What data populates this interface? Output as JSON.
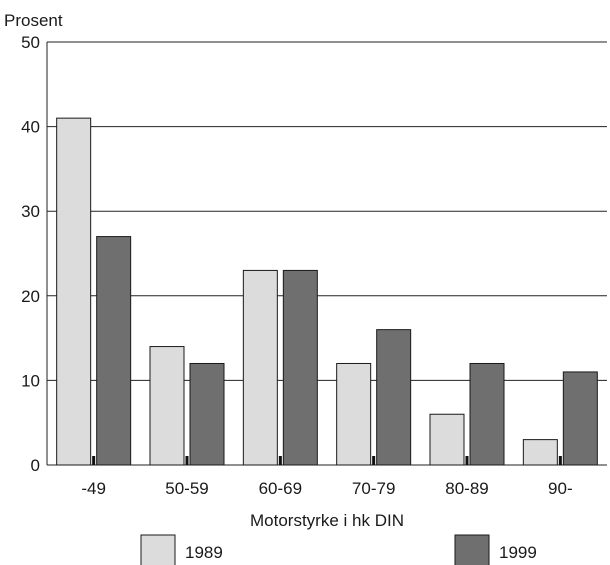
{
  "chart_data": {
    "type": "bar",
    "ylabel": "Prosent",
    "xlabel": "Motorstyrke i hk DIN",
    "categories": [
      "-49",
      "50-59",
      "60-69",
      "70-79",
      "80-89",
      "90-"
    ],
    "yticks": [
      "0",
      "10",
      "20",
      "30",
      "40",
      "50"
    ],
    "ylim": [
      0,
      50
    ],
    "grid": true,
    "legend_position": "bottom",
    "series": [
      {
        "name": "1989",
        "values": [
          41,
          14,
          23,
          12,
          6,
          3
        ],
        "color": "#dcdcdc"
      },
      {
        "name": "1999",
        "values": [
          27,
          12,
          23,
          16,
          12,
          11
        ],
        "color": "#6f6f6f"
      }
    ]
  }
}
